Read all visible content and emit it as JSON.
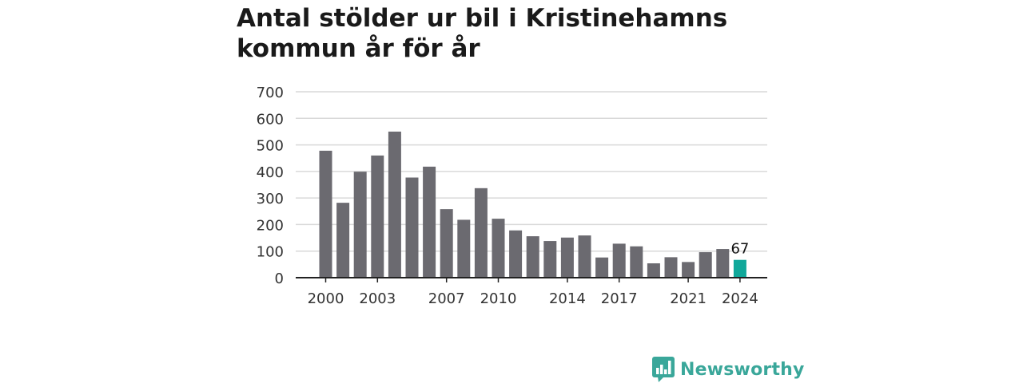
{
  "title_lines": [
    "Antal stölder ur bil i Kristinehamns",
    "kommun år för år"
  ],
  "colors": {
    "bar": "#6b6a70",
    "highlight": "#10a89a",
    "grid": "#d9d9d9",
    "axis": "#222222",
    "brand": "#3aa79a"
  },
  "brand": {
    "name": "Newsworthy",
    "icon": "bar-chart-speech-icon"
  },
  "chart_data": {
    "type": "bar",
    "title": "Antal stölder ur bil i Kristinehamns kommun år för år",
    "xlabel": "",
    "ylabel": "",
    "ylim": [
      0,
      700
    ],
    "yticks": [
      0,
      100,
      200,
      300,
      400,
      500,
      600,
      700
    ],
    "xtick_labels": [
      "2000",
      "2003",
      "2007",
      "2010",
      "2014",
      "2017",
      "2021",
      "2024"
    ],
    "grid": true,
    "categories": [
      2000,
      2001,
      2002,
      2003,
      2004,
      2005,
      2006,
      2007,
      2008,
      2009,
      2010,
      2011,
      2012,
      2013,
      2014,
      2015,
      2016,
      2017,
      2018,
      2019,
      2020,
      2021,
      2022,
      2023,
      2024
    ],
    "values": [
      478,
      282,
      399,
      460,
      550,
      377,
      418,
      258,
      218,
      337,
      222,
      178,
      156,
      138,
      151,
      159,
      76,
      128,
      118,
      54,
      77,
      59,
      96,
      108,
      67
    ],
    "highlight_index": 24,
    "annotation": "67"
  }
}
